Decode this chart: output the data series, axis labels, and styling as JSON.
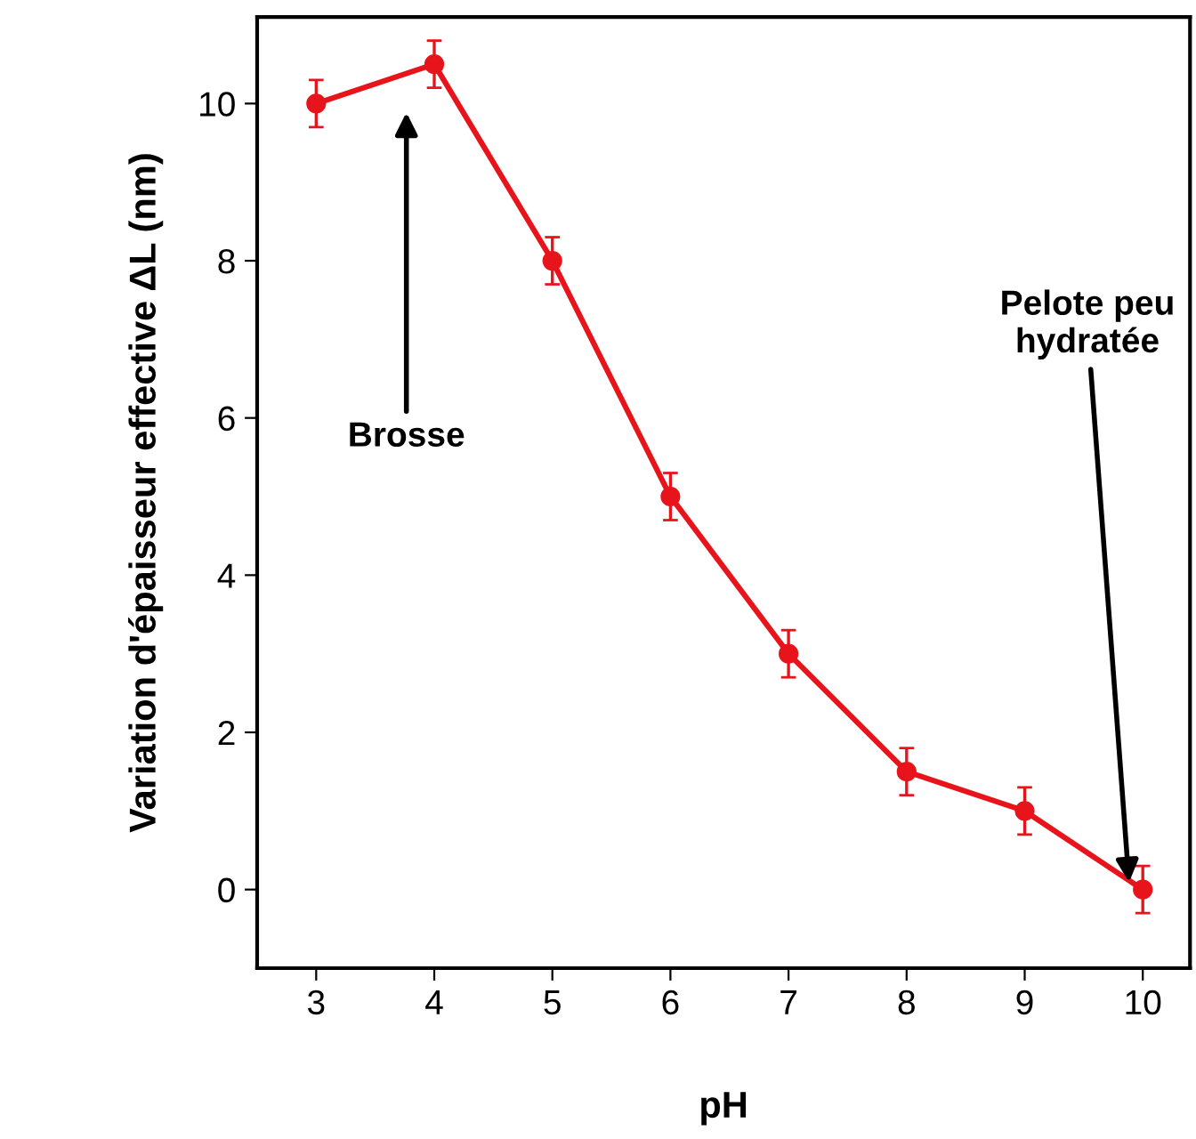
{
  "chart_data": {
    "type": "line",
    "xlabel": "pH",
    "ylabel": "Variation d'épaisseur effective ΔL (nm)",
    "x": [
      3,
      4,
      5,
      6,
      7,
      8,
      9,
      10
    ],
    "series": [
      {
        "color": "#e8141b",
        "values": [
          10,
          10.5,
          8,
          5,
          3,
          1.5,
          1,
          0
        ],
        "errors": [
          0.3,
          0.3,
          0.3,
          0.3,
          0.3,
          0.3,
          0.3,
          0.3
        ]
      }
    ],
    "xlim": [
      2.5,
      10.4
    ],
    "xticks": [
      3,
      4,
      5,
      6,
      7,
      8,
      9,
      10
    ],
    "ylim": [
      -1,
      11.1
    ],
    "yticks": [
      0,
      2,
      4,
      6,
      8,
      10
    ],
    "marker": "circle",
    "line_style": "solid",
    "grid": false,
    "legend": false,
    "annotations": [
      "Brosse",
      "Pelote peu\nhydratée"
    ]
  }
}
